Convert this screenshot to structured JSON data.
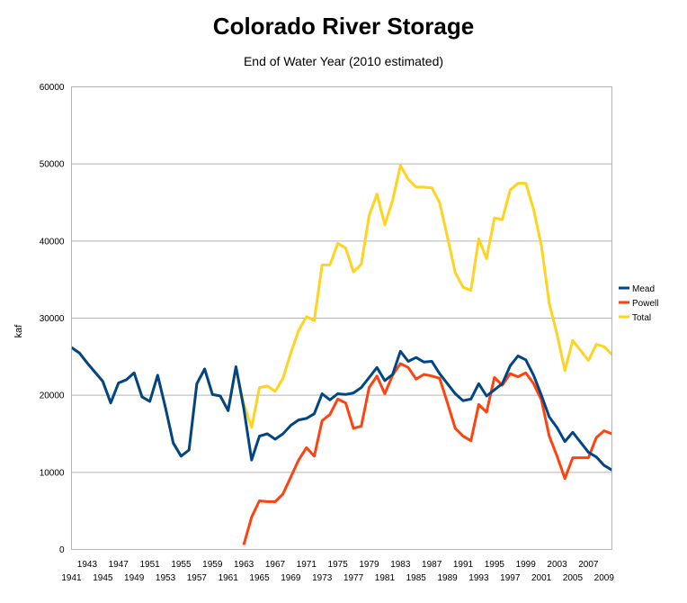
{
  "chart_data": {
    "type": "line",
    "title": "Colorado River Storage",
    "subtitle": "End of Water Year (2010 estimated)",
    "xlabel": "",
    "ylabel": "kaf",
    "ylim": [
      0,
      60000
    ],
    "yticks": [
      0,
      10000,
      20000,
      30000,
      40000,
      50000,
      60000
    ],
    "xlim": [
      1941,
      2010
    ],
    "xticks_row1": [
      1943,
      1947,
      1951,
      1955,
      1959,
      1963,
      1967,
      1971,
      1975,
      1979,
      1983,
      1987,
      1991,
      1995,
      1999,
      2003,
      2007
    ],
    "xticks_row2": [
      1941,
      1945,
      1949,
      1953,
      1957,
      1961,
      1965,
      1969,
      1973,
      1977,
      1981,
      1985,
      1989,
      1993,
      1997,
      2001,
      2005,
      2009
    ],
    "grid": true,
    "legend_position": "right",
    "series": [
      {
        "name": "Mead",
        "color": "#004586",
        "x": [
          1941,
          1942,
          1943,
          1944,
          1945,
          1946,
          1947,
          1948,
          1949,
          1950,
          1951,
          1952,
          1953,
          1954,
          1955,
          1956,
          1957,
          1958,
          1959,
          1960,
          1961,
          1962,
          1963,
          1964,
          1965,
          1966,
          1967,
          1968,
          1969,
          1970,
          1971,
          1972,
          1973,
          1974,
          1975,
          1976,
          1977,
          1978,
          1979,
          1980,
          1981,
          1982,
          1983,
          1984,
          1985,
          1986,
          1987,
          1988,
          1989,
          1990,
          1991,
          1992,
          1993,
          1994,
          1995,
          1996,
          1997,
          1998,
          1999,
          2000,
          2001,
          2002,
          2003,
          2004,
          2005,
          2006,
          2007,
          2008,
          2009,
          2010
        ],
        "values": [
          26200,
          25500,
          24200,
          23000,
          21800,
          19000,
          21600,
          22000,
          22900,
          19800,
          19200,
          22600,
          18400,
          13800,
          12100,
          12900,
          21500,
          23400,
          20100,
          19900,
          18000,
          23700,
          18300,
          11600,
          14700,
          15000,
          14300,
          15000,
          16100,
          16800,
          17000,
          17600,
          20200,
          19400,
          20200,
          20100,
          20300,
          21000,
          22300,
          23600,
          21900,
          22700,
          25700,
          24400,
          24900,
          24300,
          24400,
          22800,
          21500,
          20200,
          19300,
          19500,
          21500,
          19900,
          20700,
          21500,
          23800,
          25100,
          24600,
          22600,
          20000,
          17200,
          15800,
          14000,
          15200,
          13900,
          12600,
          12000,
          10900,
          10300
        ]
      },
      {
        "name": "Powell",
        "color": "#ff420e",
        "x": [
          1963,
          1964,
          1965,
          1966,
          1967,
          1968,
          1969,
          1970,
          1971,
          1972,
          1973,
          1974,
          1975,
          1976,
          1977,
          1978,
          1979,
          1980,
          1981,
          1982,
          1983,
          1984,
          1985,
          1986,
          1987,
          1988,
          1989,
          1990,
          1991,
          1992,
          1993,
          1994,
          1995,
          1996,
          1997,
          1998,
          1999,
          2000,
          2001,
          2002,
          2003,
          2004,
          2005,
          2006,
          2007,
          2008,
          2009,
          2010
        ],
        "values": [
          600,
          4200,
          6300,
          6200,
          6200,
          7200,
          9400,
          11600,
          13200,
          12100,
          16700,
          17500,
          19500,
          19000,
          15700,
          16000,
          21000,
          22500,
          20200,
          22600,
          24100,
          23600,
          22100,
          22700,
          22500,
          22200,
          19000,
          15700,
          14700,
          14100,
          18800,
          17800,
          22300,
          21300,
          22800,
          22400,
          22900,
          21500,
          19400,
          14700,
          12100,
          9200,
          11900,
          11900,
          11900,
          14500,
          15400,
          15000
        ]
      },
      {
        "name": "Total",
        "color": "#ffd320",
        "x": [
          1941,
          1942,
          1943,
          1944,
          1945,
          1946,
          1947,
          1948,
          1949,
          1950,
          1951,
          1952,
          1953,
          1954,
          1955,
          1956,
          1957,
          1958,
          1959,
          1960,
          1961,
          1962,
          1963,
          1964,
          1965,
          1966,
          1967,
          1968,
          1969,
          1970,
          1971,
          1972,
          1973,
          1974,
          1975,
          1976,
          1977,
          1978,
          1979,
          1980,
          1981,
          1982,
          1983,
          1984,
          1985,
          1986,
          1987,
          1988,
          1989,
          1990,
          1991,
          1992,
          1993,
          1994,
          1995,
          1996,
          1997,
          1998,
          1999,
          2000,
          2001,
          2002,
          2003,
          2004,
          2005,
          2006,
          2007,
          2008,
          2009,
          2010
        ],
        "values": [
          26200,
          25500,
          24200,
          23000,
          21800,
          19000,
          21600,
          22000,
          22900,
          19800,
          19200,
          22600,
          18400,
          13800,
          12100,
          12900,
          21500,
          23400,
          20100,
          19900,
          18000,
          23700,
          18900,
          15800,
          21000,
          21200,
          20500,
          22200,
          25500,
          28400,
          30200,
          29700,
          36900,
          36900,
          39700,
          39100,
          36000,
          37000,
          43300,
          46100,
          42100,
          45300,
          49800,
          48000,
          47000,
          47000,
          46900,
          45000,
          40500,
          35900,
          34000,
          33600,
          40300,
          37700,
          43000,
          42800,
          46600,
          47500,
          47500,
          44100,
          39400,
          31900,
          27900,
          23200,
          27100,
          25800,
          24500,
          26600,
          26300,
          25300
        ]
      }
    ]
  }
}
